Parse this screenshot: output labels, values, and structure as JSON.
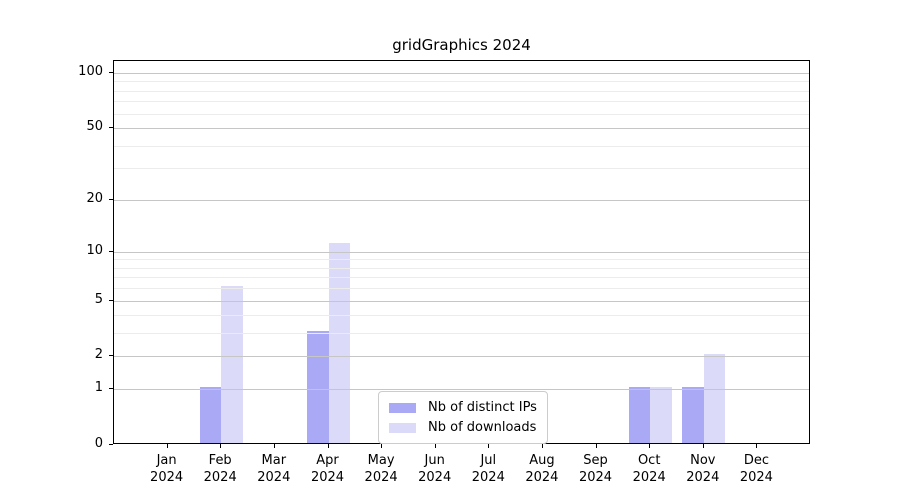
{
  "chart_data": {
    "type": "bar",
    "title": "gridGraphics 2024",
    "categories": [
      "Jan",
      "Feb",
      "Mar",
      "Apr",
      "May",
      "Jun",
      "Jul",
      "Aug",
      "Sep",
      "Oct",
      "Nov",
      "Dec"
    ],
    "x_year_label": "2024",
    "series": [
      {
        "name": "Nb of distinct IPs",
        "color": "#a9a9f6",
        "fill_rgba": "rgba(84,84,238,0.5)",
        "values": [
          0,
          1,
          0,
          3,
          0,
          0,
          0,
          0,
          0,
          1,
          1,
          0
        ]
      },
      {
        "name": "Nb of downloads",
        "color": "#dbdbf9",
        "fill_rgba": "rgba(183,183,243,0.5)",
        "values": [
          0,
          6,
          0,
          11,
          0,
          0,
          0,
          0,
          0,
          1,
          2,
          0
        ]
      }
    ],
    "y_axis": {
      "scale": "log1p",
      "major_ticks": [
        0,
        1,
        2,
        5,
        10,
        20,
        50,
        100
      ],
      "minor_ticks": [
        3,
        4,
        6,
        7,
        8,
        9,
        30,
        40,
        60,
        70,
        80,
        90
      ],
      "top_value": 116,
      "grid": true
    },
    "legend": {
      "position": "inside-bottom-center"
    }
  },
  "colors": {
    "major_grid": "#c6c6c6",
    "minor_grid": "#ececec",
    "axis": "#000000",
    "text": "#000000",
    "legend_border": "#cccccc",
    "background": "#ffffff"
  }
}
